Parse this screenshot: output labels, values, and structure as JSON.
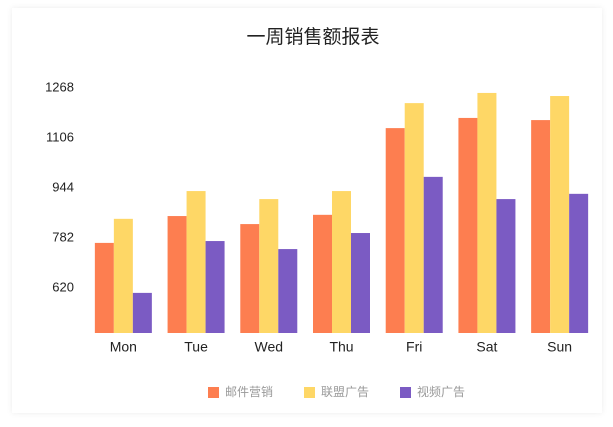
{
  "chart_data": {
    "type": "bar",
    "title": "一周销售额报表",
    "categories": [
      "Mon",
      "Tue",
      "Wed",
      "Thu",
      "Fri",
      "Sat",
      "Sun"
    ],
    "series": [
      {
        "name": "邮件营销",
        "color": "#fd7e50",
        "values": [
          766,
          853,
          827,
          857,
          1138,
          1171,
          1164
        ]
      },
      {
        "name": "联盟广告",
        "color": "#fed766",
        "values": [
          844,
          934,
          908,
          934,
          1219,
          1252,
          1242
        ]
      },
      {
        "name": "视频广告",
        "color": "#7b5bc3",
        "values": [
          604,
          772,
          746,
          798,
          980,
          908,
          925
        ]
      }
    ],
    "ylim": [
      474,
      1268
    ],
    "yticks": [
      620,
      782,
      944,
      1106,
      1268
    ],
    "grid": false,
    "legend": "bottom"
  }
}
